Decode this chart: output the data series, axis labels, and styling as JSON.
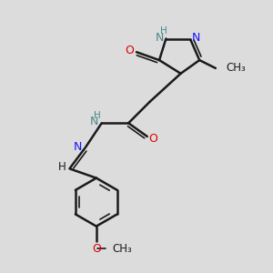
{
  "bg_color": "#dcdcdc",
  "bond_color": "#1a1a1a",
  "N_color": "#1414ff",
  "O_color": "#dd0000",
  "H_color": "#4a8888",
  "figsize": [
    3.0,
    3.0
  ],
  "dpi": 100,
  "xlim": [
    0,
    10
  ],
  "ylim": [
    0,
    10
  ]
}
